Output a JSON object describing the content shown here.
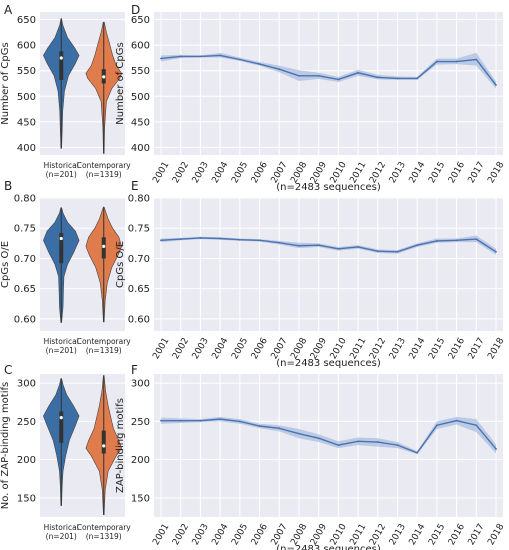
{
  "figure": {
    "colors": {
      "historical": "#3a6ea5",
      "contemporary": "#e07b4c",
      "line": "#4c72b0",
      "band": "#a9bddf",
      "background": "#eaeaf2",
      "grid": "#ffffff"
    }
  },
  "chart_data": [
    {
      "panel": "A",
      "type": "violin",
      "ylabel": "Number of CpGs",
      "ylim": [
        385,
        665
      ],
      "yticks": [
        400,
        450,
        500,
        550,
        600,
        650
      ],
      "categories": [
        "Historical",
        "Contemporary"
      ],
      "counts": [
        "(n=201)",
        "(n=1319)"
      ],
      "violins": [
        {
          "category": "Historical",
          "min": 398,
          "max": 652,
          "q1": 532,
          "median": 575,
          "q3": 588,
          "density": [
            [
              398,
              0.02
            ],
            [
              430,
              0.05
            ],
            [
              470,
              0.08
            ],
            [
              510,
              0.18
            ],
            [
              540,
              0.4
            ],
            [
              565,
              0.8
            ],
            [
              580,
              1.0
            ],
            [
              595,
              0.75
            ],
            [
              615,
              0.35
            ],
            [
              640,
              0.08
            ],
            [
              652,
              0.02
            ]
          ]
        },
        {
          "category": "Contemporary",
          "min": 388,
          "max": 645,
          "q1": 525,
          "median": 538,
          "q3": 553,
          "density": [
            [
              388,
              0.02
            ],
            [
              440,
              0.05
            ],
            [
              490,
              0.15
            ],
            [
              515,
              0.45
            ],
            [
              535,
              0.9
            ],
            [
              545,
              1.0
            ],
            [
              560,
              0.7
            ],
            [
              580,
              0.5
            ],
            [
              600,
              0.35
            ],
            [
              625,
              0.15
            ],
            [
              645,
              0.03
            ]
          ]
        }
      ]
    },
    {
      "panel": "D",
      "type": "line",
      "ylabel": "Number of CpGs",
      "xlabel": "(n=2483 sequences)",
      "ylim": [
        385,
        665
      ],
      "yticks": [
        400,
        450,
        500,
        550,
        600,
        650
      ],
      "x": [
        "2001",
        "2002",
        "2003",
        "2004",
        "2005",
        "2006",
        "2007",
        "2008",
        "2009",
        "2010",
        "2011",
        "2012",
        "2013",
        "2014",
        "2015",
        "2016",
        "2017",
        "2018"
      ],
      "y": [
        574,
        578,
        578,
        580,
        572,
        563,
        553,
        540,
        540,
        533,
        546,
        537,
        535,
        535,
        568,
        568,
        572,
        522
      ],
      "band": [
        [
          568,
          580
        ],
        [
          575,
          581
        ],
        [
          576,
          580
        ],
        [
          576,
          585
        ],
        [
          569,
          576
        ],
        [
          560,
          567
        ],
        [
          547,
          560
        ],
        [
          530,
          551
        ],
        [
          534,
          546
        ],
        [
          528,
          538
        ],
        [
          540,
          552
        ],
        [
          533,
          542
        ],
        [
          532,
          539
        ],
        [
          532,
          538
        ],
        [
          562,
          574
        ],
        [
          563,
          574
        ],
        [
          560,
          585
        ],
        [
          515,
          529
        ]
      ]
    },
    {
      "panel": "B",
      "type": "violin",
      "ylabel": "CpGs O/E",
      "ylim": [
        0.58,
        0.8
      ],
      "yticks": [
        0.6,
        0.65,
        0.7,
        0.75,
        0.8
      ],
      "categories": [
        "Historical",
        "Contemporary"
      ],
      "counts": [
        "(n=201)",
        "(n=1319)"
      ],
      "violins": [
        {
          "category": "Historical",
          "min": 0.594,
          "max": 0.784,
          "q1": 0.692,
          "median": 0.733,
          "q3": 0.742,
          "density": [
            [
              0.594,
              0.02
            ],
            [
              0.62,
              0.1
            ],
            [
              0.645,
              0.12
            ],
            [
              0.67,
              0.15
            ],
            [
              0.69,
              0.35
            ],
            [
              0.71,
              0.7
            ],
            [
              0.73,
              1.0
            ],
            [
              0.745,
              0.8
            ],
            [
              0.76,
              0.35
            ],
            [
              0.775,
              0.1
            ],
            [
              0.784,
              0.02
            ]
          ]
        },
        {
          "category": "Contemporary",
          "min": 0.595,
          "max": 0.785,
          "q1": 0.7,
          "median": 0.72,
          "q3": 0.735,
          "density": [
            [
              0.595,
              0.02
            ],
            [
              0.63,
              0.08
            ],
            [
              0.66,
              0.2
            ],
            [
              0.685,
              0.45
            ],
            [
              0.705,
              0.8
            ],
            [
              0.72,
              1.0
            ],
            [
              0.735,
              0.85
            ],
            [
              0.75,
              0.5
            ],
            [
              0.765,
              0.25
            ],
            [
              0.78,
              0.08
            ],
            [
              0.785,
              0.02
            ]
          ]
        }
      ]
    },
    {
      "panel": "E",
      "type": "line",
      "ylabel": "CpGs O/E",
      "xlabel": "(n=2483 sequences)",
      "ylim": [
        0.58,
        0.8
      ],
      "yticks": [
        0.6,
        0.65,
        0.7,
        0.75,
        0.8
      ],
      "x": [
        "2001",
        "2002",
        "2003",
        "2004",
        "2005",
        "2006",
        "2007",
        "2008",
        "2009",
        "2010",
        "2011",
        "2012",
        "2013",
        "2014",
        "2015",
        "2016",
        "2017",
        "2018"
      ],
      "y": [
        0.73,
        0.732,
        0.734,
        0.733,
        0.731,
        0.73,
        0.726,
        0.721,
        0.722,
        0.716,
        0.719,
        0.712,
        0.711,
        0.722,
        0.729,
        0.73,
        0.732,
        0.711
      ],
      "band": [
        [
          0.727,
          0.733
        ],
        [
          0.73,
          0.734
        ],
        [
          0.732,
          0.736
        ],
        [
          0.731,
          0.735
        ],
        [
          0.729,
          0.733
        ],
        [
          0.728,
          0.732
        ],
        [
          0.723,
          0.729
        ],
        [
          0.717,
          0.726
        ],
        [
          0.719,
          0.725
        ],
        [
          0.713,
          0.719
        ],
        [
          0.716,
          0.722
        ],
        [
          0.709,
          0.715
        ],
        [
          0.708,
          0.714
        ],
        [
          0.719,
          0.725
        ],
        [
          0.726,
          0.733
        ],
        [
          0.727,
          0.733
        ],
        [
          0.727,
          0.738
        ],
        [
          0.706,
          0.716
        ]
      ]
    },
    {
      "panel": "C",
      "type": "violin",
      "ylabel": "No. of ZAP-binding motifs",
      "ylim": [
        125,
        312
      ],
      "yticks": [
        150,
        200,
        250,
        300
      ],
      "categories": [
        "Historical",
        "Contemporary"
      ],
      "counts": [
        "(n=201)",
        "(n=1319)"
      ],
      "violins": [
        {
          "category": "Historical",
          "min": 140,
          "max": 306,
          "q1": 222,
          "median": 255,
          "q3": 263,
          "density": [
            [
              140,
              0.02
            ],
            [
              165,
              0.05
            ],
            [
              185,
              0.1
            ],
            [
              205,
              0.25
            ],
            [
              225,
              0.45
            ],
            [
              245,
              0.8
            ],
            [
              257,
              1.0
            ],
            [
              270,
              0.7
            ],
            [
              285,
              0.3
            ],
            [
              298,
              0.1
            ],
            [
              306,
              0.02
            ]
          ]
        },
        {
          "category": "Contemporary",
          "min": 128,
          "max": 310,
          "q1": 208,
          "median": 218,
          "q3": 238,
          "density": [
            [
              128,
              0.02
            ],
            [
              160,
              0.08
            ],
            [
              185,
              0.25
            ],
            [
              205,
              0.7
            ],
            [
              215,
              1.0
            ],
            [
              225,
              0.85
            ],
            [
              240,
              0.55
            ],
            [
              255,
              0.4
            ],
            [
              270,
              0.25
            ],
            [
              290,
              0.1
            ],
            [
              310,
              0.02
            ]
          ]
        }
      ]
    },
    {
      "panel": "F",
      "type": "line",
      "ylabel": "ZAP-binding motifs",
      "xlabel": "(n=2483 sequences)",
      "ylim": [
        125,
        312
      ],
      "yticks": [
        150,
        200,
        250,
        300
      ],
      "x": [
        "2001",
        "2002",
        "2003",
        "2004",
        "2005",
        "2006",
        "2007",
        "2008",
        "2009",
        "2010",
        "2011",
        "2012",
        "2013",
        "2014",
        "2015",
        "2016",
        "2017",
        "2018"
      ],
      "y": [
        251,
        251,
        251,
        253,
        250,
        244,
        241,
        234,
        228,
        219,
        224,
        223,
        219,
        209,
        245,
        251,
        245,
        214
      ],
      "band": [
        [
          247,
          255
        ],
        [
          248,
          254
        ],
        [
          249,
          253
        ],
        [
          250,
          256
        ],
        [
          247,
          253
        ],
        [
          241,
          247
        ],
        [
          237,
          245
        ],
        [
          228,
          240
        ],
        [
          223,
          233
        ],
        [
          215,
          224
        ],
        [
          219,
          229
        ],
        [
          217,
          228
        ],
        [
          215,
          223
        ],
        [
          207,
          211
        ],
        [
          240,
          250
        ],
        [
          246,
          256
        ],
        [
          236,
          253
        ],
        [
          208,
          220
        ]
      ]
    }
  ]
}
